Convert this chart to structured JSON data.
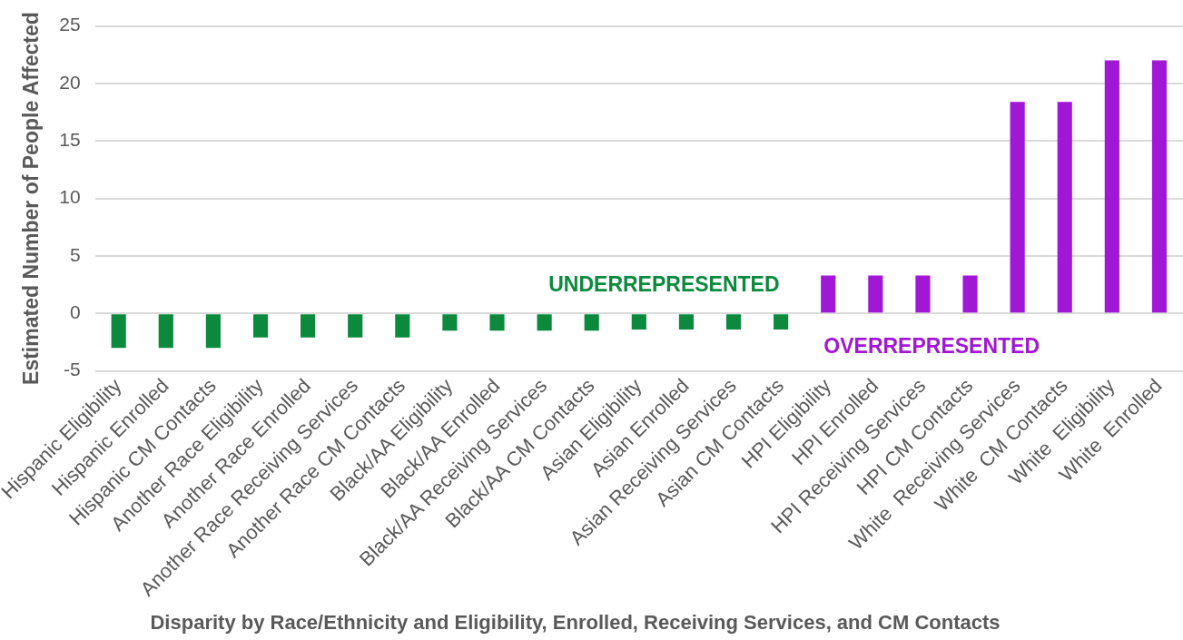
{
  "chart_data": {
    "type": "bar",
    "xlabel": "Disparity by Race/Ethnicity and Eligibility, Enrolled, Receiving Services, and CM Contacts",
    "ylabel": "Estimated Number of People Affected",
    "categories": [
      "Hispanic Eligibility",
      "Hispanic Enrolled",
      "Hispanic CM Contacts",
      "Another Race Eligibility",
      "Another Race Enrolled",
      "Another Race Receiving Services",
      "Another Race CM Contacts",
      "Black/AA Eligibility",
      "Black/AA Enrolled",
      "Black/AA Receiving Services",
      "Black/AA CM Contacts",
      "Asian Eligibility",
      "Asian Enrolled",
      "Asian Receiving Services",
      "Asian CM Contacts",
      "HPI Eligibility",
      "HPI Enrolled",
      "HPI Receiving Services",
      "HPI CM Contacts",
      "White  Receiving Services",
      "White  CM Contacts",
      "White  Eligibility",
      "White  Enrolled"
    ],
    "values": [
      -3,
      -3,
      -3,
      -2.1,
      -2.1,
      -2.1,
      -2.1,
      -1.5,
      -1.5,
      -1.5,
      -1.5,
      -1.4,
      -1.4,
      -1.4,
      -1.4,
      3.3,
      3.3,
      3.3,
      3.3,
      18.4,
      18.4,
      22,
      22
    ],
    "colors": [
      "#0b8a3e",
      "#0b8a3e",
      "#0b8a3e",
      "#0b8a3e",
      "#0b8a3e",
      "#0b8a3e",
      "#0b8a3e",
      "#0b8a3e",
      "#0b8a3e",
      "#0b8a3e",
      "#0b8a3e",
      "#0b8a3e",
      "#0b8a3e",
      "#0b8a3e",
      "#0b8a3e",
      "#a117d6",
      "#a117d6",
      "#a117d6",
      "#a117d6",
      "#a117d6",
      "#a117d6",
      "#a117d6",
      "#a117d6"
    ],
    "ylim": [
      -5,
      25
    ],
    "yticks": [
      -5,
      0,
      5,
      10,
      15,
      20,
      25
    ],
    "grid": "y",
    "annotations": [
      "UNDERREPRESENTED",
      "OVERREPRESENTED"
    ]
  }
}
